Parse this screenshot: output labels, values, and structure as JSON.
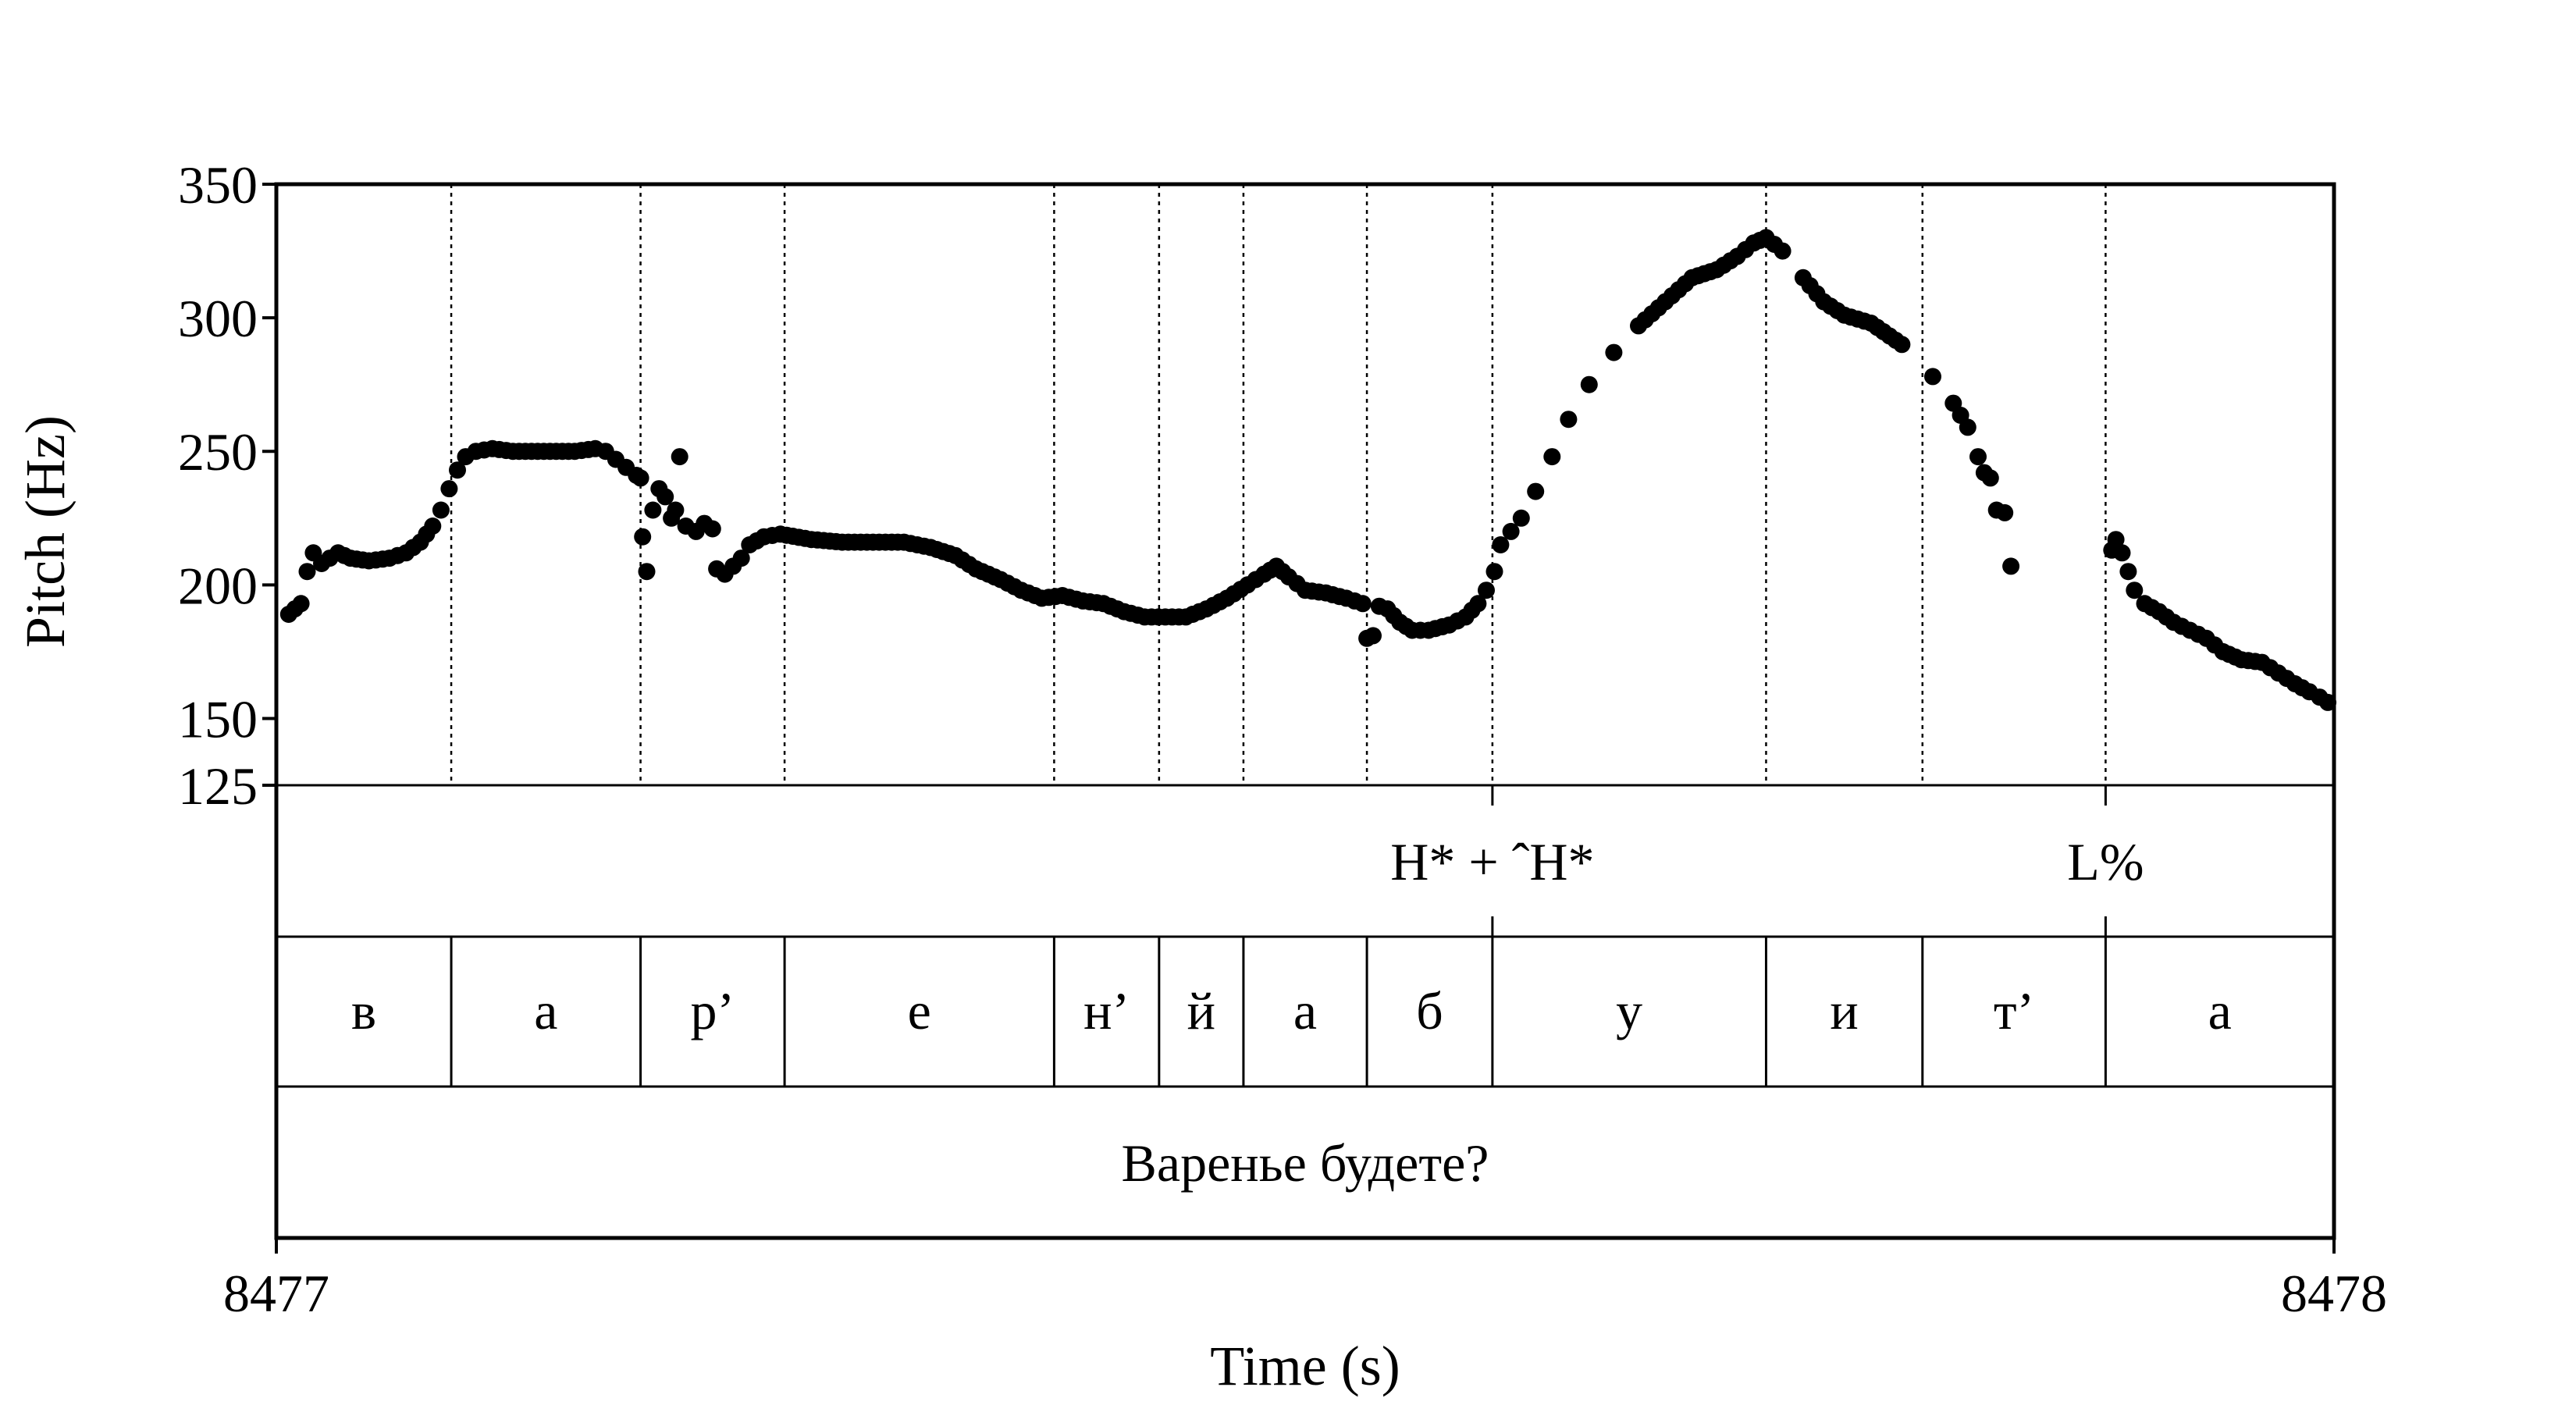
{
  "chart_data": {
    "type": "scatter",
    "title": "",
    "xlabel": "Time (s)",
    "ylabel": "Pitch (Hz)",
    "xlim": [
      8477,
      8478
    ],
    "ylim": [
      125,
      350
    ],
    "x_ticks": [
      "8477",
      "8478"
    ],
    "y_ticks": [
      {
        "value": 125,
        "label": "125"
      },
      {
        "value": 150,
        "label": "150"
      },
      {
        "value": 200,
        "label": "200"
      },
      {
        "value": 250,
        "label": "250"
      },
      {
        "value": 300,
        "label": "300"
      },
      {
        "value": 350,
        "label": "350"
      }
    ],
    "grid": false,
    "boundaries": [
      8477.085,
      8477.177,
      8477.247,
      8477.378,
      8477.429,
      8477.47,
      8477.53,
      8477.591,
      8477.724,
      8477.8,
      8477.889
    ],
    "tones": [
      {
        "t": 8477.591,
        "label": "H* + ˆH*"
      },
      {
        "t": 8477.889,
        "label": "L%"
      }
    ],
    "segments": [
      {
        "t0": 8477.0,
        "t1": 8477.085,
        "label": "в"
      },
      {
        "t0": 8477.085,
        "t1": 8477.177,
        "label": "а"
      },
      {
        "t0": 8477.177,
        "t1": 8477.247,
        "label": "р’"
      },
      {
        "t0": 8477.247,
        "t1": 8477.378,
        "label": "е"
      },
      {
        "t0": 8477.378,
        "t1": 8477.429,
        "label": "н’"
      },
      {
        "t0": 8477.429,
        "t1": 8477.47,
        "label": "й"
      },
      {
        "t0": 8477.47,
        "t1": 8477.53,
        "label": "а"
      },
      {
        "t0": 8477.53,
        "t1": 8477.591,
        "label": "б"
      },
      {
        "t0": 8477.591,
        "t1": 8477.724,
        "label": "у"
      },
      {
        "t0": 8477.724,
        "t1": 8477.8,
        "label": "и"
      },
      {
        "t0": 8477.8,
        "t1": 8477.889,
        "label": "т’"
      },
      {
        "t0": 8477.889,
        "t1": 8478.0,
        "label": "а"
      }
    ],
    "utterance": "Варенье будете?",
    "pitch_contour": [
      [
        8477.006,
        189
      ],
      [
        8477.012,
        193
      ],
      [
        8477.015,
        205
      ],
      [
        8477.018,
        212
      ],
      [
        8477.022,
        208
      ],
      [
        8477.026,
        210
      ],
      [
        8477.03,
        212
      ],
      [
        8477.036,
        210
      ],
      [
        8477.045,
        209
      ],
      [
        8477.055,
        210
      ],
      [
        8477.063,
        212
      ],
      [
        8477.07,
        216
      ],
      [
        8477.076,
        222
      ],
      [
        8477.08,
        228
      ],
      [
        8477.084,
        236
      ],
      [
        8477.088,
        243
      ],
      [
        8477.092,
        248
      ],
      [
        8477.097,
        250
      ],
      [
        8477.105,
        251
      ],
      [
        8477.115,
        250
      ],
      [
        8477.13,
        250
      ],
      [
        8477.145,
        250
      ],
      [
        8477.155,
        251
      ],
      [
        8477.16,
        250
      ],
      [
        8477.165,
        247
      ],
      [
        8477.17,
        244
      ],
      [
        8477.175,
        241
      ],
      [
        8477.177,
        240
      ],
      [
        8477.178,
        218
      ],
      [
        8477.18,
        205
      ],
      [
        8477.183,
        228
      ],
      [
        8477.186,
        236
      ],
      [
        8477.189,
        233
      ],
      [
        8477.192,
        225
      ],
      [
        8477.194,
        228
      ],
      [
        8477.196,
        248
      ],
      [
        8477.199,
        222
      ],
      [
        8477.204,
        220
      ],
      [
        8477.208,
        223
      ],
      [
        8477.212,
        221
      ],
      [
        8477.214,
        206
      ],
      [
        8477.218,
        204
      ],
      [
        8477.222,
        207
      ],
      [
        8477.226,
        210
      ],
      [
        8477.23,
        215
      ],
      [
        8477.237,
        218
      ],
      [
        8477.245,
        219
      ],
      [
        8477.26,
        217
      ],
      [
        8477.275,
        216
      ],
      [
        8477.29,
        216
      ],
      [
        8477.305,
        216
      ],
      [
        8477.318,
        214
      ],
      [
        8477.33,
        211
      ],
      [
        8477.34,
        206
      ],
      [
        8477.352,
        202
      ],
      [
        8477.362,
        198
      ],
      [
        8477.372,
        195
      ],
      [
        8477.382,
        196
      ],
      [
        8477.392,
        194
      ],
      [
        8477.402,
        193
      ],
      [
        8477.412,
        190
      ],
      [
        8477.422,
        188
      ],
      [
        8477.432,
        188
      ],
      [
        8477.442,
        188
      ],
      [
        8477.452,
        191
      ],
      [
        8477.462,
        195
      ],
      [
        8477.472,
        200
      ],
      [
        8477.48,
        204
      ],
      [
        8477.486,
        207
      ],
      [
        8477.492,
        203
      ],
      [
        8477.5,
        198
      ],
      [
        8477.51,
        197
      ],
      [
        8477.52,
        195
      ],
      [
        8477.528,
        193
      ],
      [
        8477.53,
        180
      ],
      [
        8477.533,
        181
      ],
      [
        8477.536,
        192
      ],
      [
        8477.54,
        191
      ],
      [
        8477.546,
        186
      ],
      [
        8477.552,
        183
      ],
      [
        8477.56,
        183
      ],
      [
        8477.57,
        185
      ],
      [
        8477.578,
        188
      ],
      [
        8477.584,
        193
      ],
      [
        8477.588,
        198
      ],
      [
        8477.592,
        205
      ],
      [
        8477.595,
        215
      ],
      [
        8477.6,
        220
      ],
      [
        8477.605,
        225
      ],
      [
        8477.612,
        235
      ],
      [
        8477.62,
        248
      ],
      [
        8477.628,
        262
      ],
      [
        8477.638,
        275
      ],
      [
        8477.65,
        287
      ],
      [
        8477.662,
        297
      ],
      [
        8477.675,
        306
      ],
      [
        8477.688,
        315
      ],
      [
        8477.7,
        318
      ],
      [
        8477.71,
        323
      ],
      [
        8477.718,
        328
      ],
      [
        8477.724,
        330
      ],
      [
        8477.732,
        325
      ],
      [
        8477.742,
        315
      ],
      [
        8477.752,
        306
      ],
      [
        8477.762,
        301
      ],
      [
        8477.775,
        298
      ],
      [
        8477.79,
        290
      ],
      [
        8477.805,
        278
      ],
      [
        8477.815,
        268
      ],
      [
        8477.822,
        259
      ],
      [
        8477.827,
        248
      ],
      [
        8477.83,
        242
      ],
      [
        8477.833,
        240
      ],
      [
        8477.836,
        228
      ],
      [
        8477.84,
        227
      ],
      [
        8477.843,
        207
      ],
      [
        8477.892,
        213
      ],
      [
        8477.894,
        217
      ],
      [
        8477.897,
        212
      ],
      [
        8477.9,
        205
      ],
      [
        8477.903,
        198
      ],
      [
        8477.908,
        193
      ],
      [
        8477.915,
        190
      ],
      [
        8477.922,
        186
      ],
      [
        8477.93,
        183
      ],
      [
        8477.938,
        180
      ],
      [
        8477.946,
        175
      ],
      [
        8477.955,
        172
      ],
      [
        8477.965,
        171
      ],
      [
        8477.973,
        167
      ],
      [
        8477.981,
        163
      ],
      [
        8477.988,
        160
      ],
      [
        8477.993,
        158
      ],
      [
        8477.997,
        156
      ]
    ]
  }
}
